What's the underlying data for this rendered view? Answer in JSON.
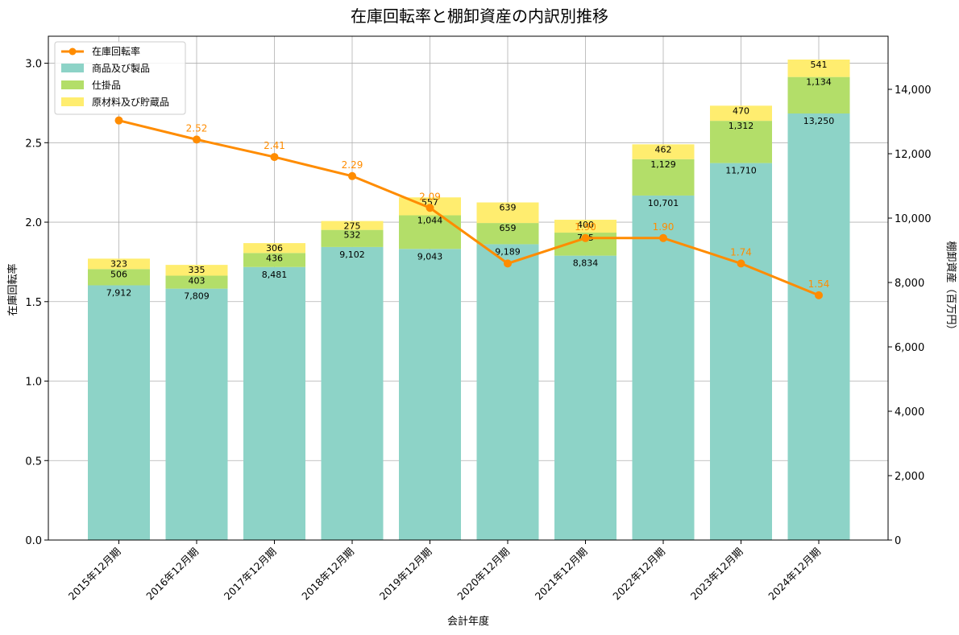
{
  "chart_data": {
    "type": "bar",
    "subtype": "stacked-bar-with-line",
    "title": "在庫回転率と棚卸資産の内訳別推移",
    "xlabel": "会計年度",
    "ylabel_left": "在庫回転率",
    "ylabel_right": "棚卸資産（百万円）",
    "ylim_left": [
      0,
      3.17
    ],
    "ylim_right": [
      0,
      15650
    ],
    "yticks_left": [
      "0.0",
      "0.5",
      "1.0",
      "1.5",
      "2.0",
      "2.5",
      "3.0"
    ],
    "yticks_right": [
      "0",
      "2,000",
      "4,000",
      "6,000",
      "8,000",
      "10,000",
      "12,000",
      "14,000"
    ],
    "grid": true,
    "legend_position": "top-left",
    "categories": [
      "2015年12月期",
      "2016年12月期",
      "2017年12月期",
      "2018年12月期",
      "2019年12月期",
      "2020年12月期",
      "2021年12月期",
      "2022年12月期",
      "2023年12月期",
      "2024年12月期"
    ],
    "bar_series": [
      {
        "name": "商品及び製品",
        "color": "#8dd3c7",
        "values": [
          7912,
          7809,
          8481,
          9102,
          9043,
          9189,
          8834,
          10701,
          11710,
          13250
        ],
        "labels": [
          "7,912",
          "7,809",
          "8,481",
          "9,102",
          "9,043",
          "9,189",
          "8,834",
          "10,701",
          "11,710",
          "13,250"
        ]
      },
      {
        "name": "仕掛品",
        "color": "#b3de69",
        "values": [
          506,
          403,
          436,
          532,
          1044,
          659,
          715,
          1129,
          1312,
          1134
        ],
        "labels": [
          "506",
          "403",
          "436",
          "532",
          "1,044",
          "659",
          "715",
          "1,129",
          "1,312",
          "1,134"
        ]
      },
      {
        "name": "原材料及び貯蔵品",
        "color": "#ffed6f",
        "values": [
          323,
          335,
          306,
          275,
          557,
          639,
          400,
          462,
          470,
          541
        ],
        "labels": [
          "323",
          "335",
          "306",
          "275",
          "557",
          "639",
          "400",
          "462",
          "470",
          "541"
        ]
      }
    ],
    "line_series": {
      "name": "在庫回転率",
      "color": "#ff8c00",
      "values": [
        2.64,
        2.52,
        2.41,
        2.29,
        2.09,
        1.74,
        1.9,
        1.9,
        1.74,
        1.54
      ],
      "labels": [
        "",
        "2.52",
        "2.41",
        "2.29",
        "2.09",
        "",
        "1.90",
        "1.90",
        "1.74",
        "1.54"
      ]
    }
  }
}
